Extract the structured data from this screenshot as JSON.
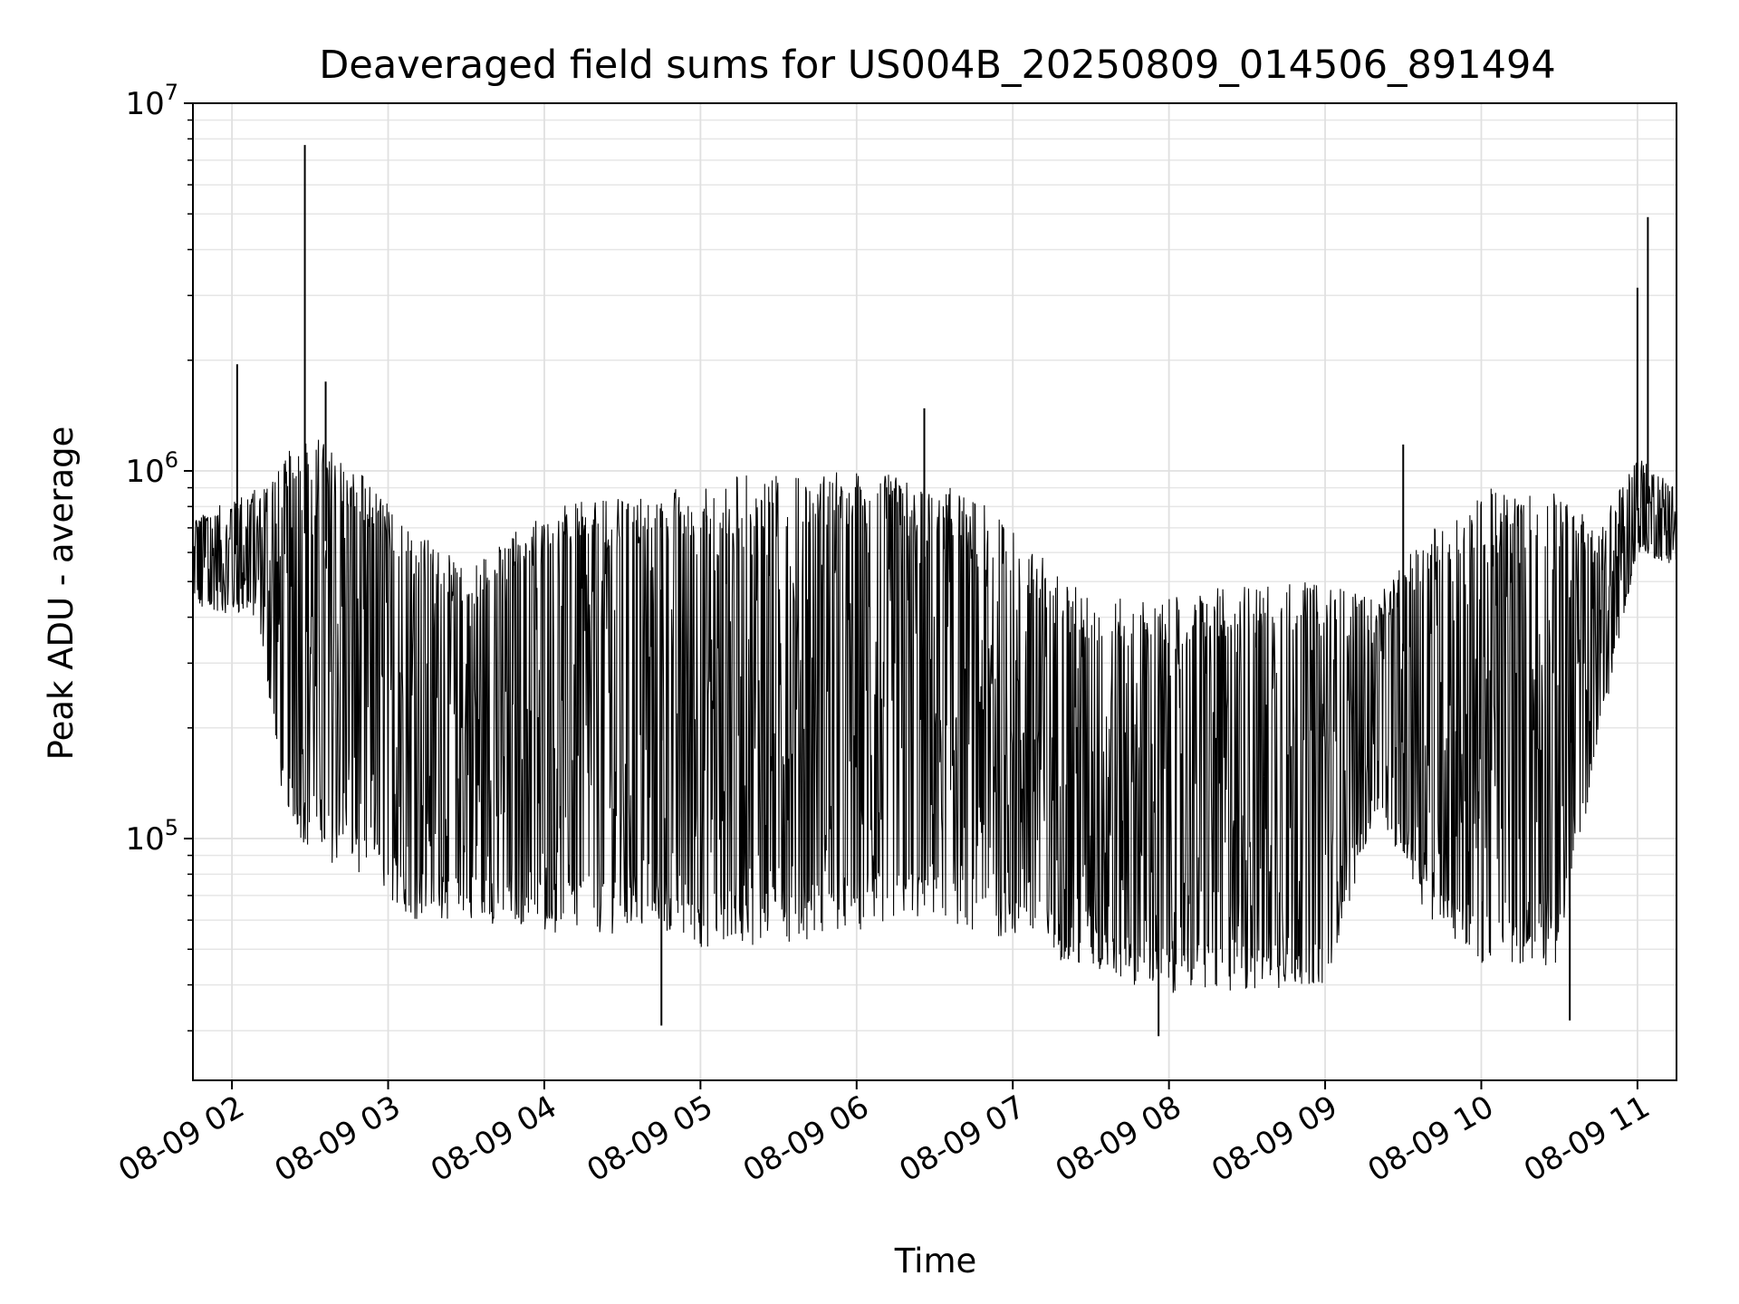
{
  "chart_data": {
    "type": "line",
    "title": "Deaveraged field sums for US004B_20250809_014506_891494",
    "xlabel": "Time",
    "ylabel": "Peak ADU - average",
    "yscale": "log",
    "ylim": [
      22000,
      10000000
    ],
    "xlim": [
      "08-09 01:45",
      "08-09 11:15"
    ],
    "grid": true,
    "line_color": "#000000",
    "y_ticks": [
      {
        "base": "10",
        "exp": "5",
        "value": 100000
      },
      {
        "base": "10",
        "exp": "6",
        "value": 1000000
      },
      {
        "base": "10",
        "exp": "7",
        "value": 10000000
      }
    ],
    "x_ticks": [
      {
        "label": "08-09 02",
        "value": "08-09 02:00"
      },
      {
        "label": "08-09 03",
        "value": "08-09 03:00"
      },
      {
        "label": "08-09 04",
        "value": "08-09 04:00"
      },
      {
        "label": "08-09 05",
        "value": "08-09 05:00"
      },
      {
        "label": "08-09 06",
        "value": "08-09 06:00"
      },
      {
        "label": "08-09 07",
        "value": "08-09 07:00"
      },
      {
        "label": "08-09 08",
        "value": "08-09 08:00"
      },
      {
        "label": "08-09 09",
        "value": "08-09 09:00"
      },
      {
        "label": "08-09 10",
        "value": "08-09 10:00"
      },
      {
        "label": "08-09 11",
        "value": "08-09 11:00"
      }
    ],
    "series_envelope": {
      "description_time": [
        "08-09 01:45",
        "08-09 02:10",
        "08-09 02:20",
        "08-09 02:30",
        "08-09 02:50",
        "08-09 03:10",
        "08-09 03:30",
        "08-09 04:00",
        "08-09 04:30",
        "08-09 05:00",
        "08-09 05:30",
        "08-09 06:00",
        "08-09 06:30",
        "08-09 06:50",
        "08-09 07:10",
        "08-09 07:30",
        "08-09 08:00",
        "08-09 08:30",
        "08-09 09:00",
        "08-09 09:20",
        "08-09 09:40",
        "08-09 10:00",
        "08-09 10:30",
        "08-09 10:45",
        "08-09 11:00",
        "08-09 11:15"
      ],
      "low": [
        420000,
        400000,
        120000,
        90000,
        80000,
        60000,
        60000,
        55000,
        55000,
        50000,
        52000,
        55000,
        60000,
        55000,
        50000,
        42000,
        38000,
        38000,
        40000,
        120000,
        60000,
        45000,
        45000,
        180000,
        600000,
        550000
      ],
      "high": [
        750000,
        900000,
        1100000,
        1300000,
        1000000,
        700000,
        550000,
        800000,
        850000,
        950000,
        1000000,
        1000000,
        950000,
        800000,
        600000,
        450000,
        450000,
        500000,
        500000,
        450000,
        700000,
        900000,
        900000,
        700000,
        1100000,
        900000
      ]
    },
    "spikes": [
      {
        "time": "08-09 02:02",
        "value": 1950000
      },
      {
        "time": "08-09 02:28",
        "value": 7700000
      },
      {
        "time": "08-09 02:36",
        "value": 1750000
      },
      {
        "time": "08-09 06:26",
        "value": 1480000
      },
      {
        "time": "08-09 09:30",
        "value": 1180000
      },
      {
        "time": "08-09 11:00",
        "value": 3150000
      },
      {
        "time": "08-09 11:04",
        "value": 4900000
      },
      {
        "time": "08-09 04:45",
        "value": 31000
      },
      {
        "time": "08-09 07:56",
        "value": 29000
      },
      {
        "time": "08-09 10:34",
        "value": 32000
      }
    ]
  }
}
